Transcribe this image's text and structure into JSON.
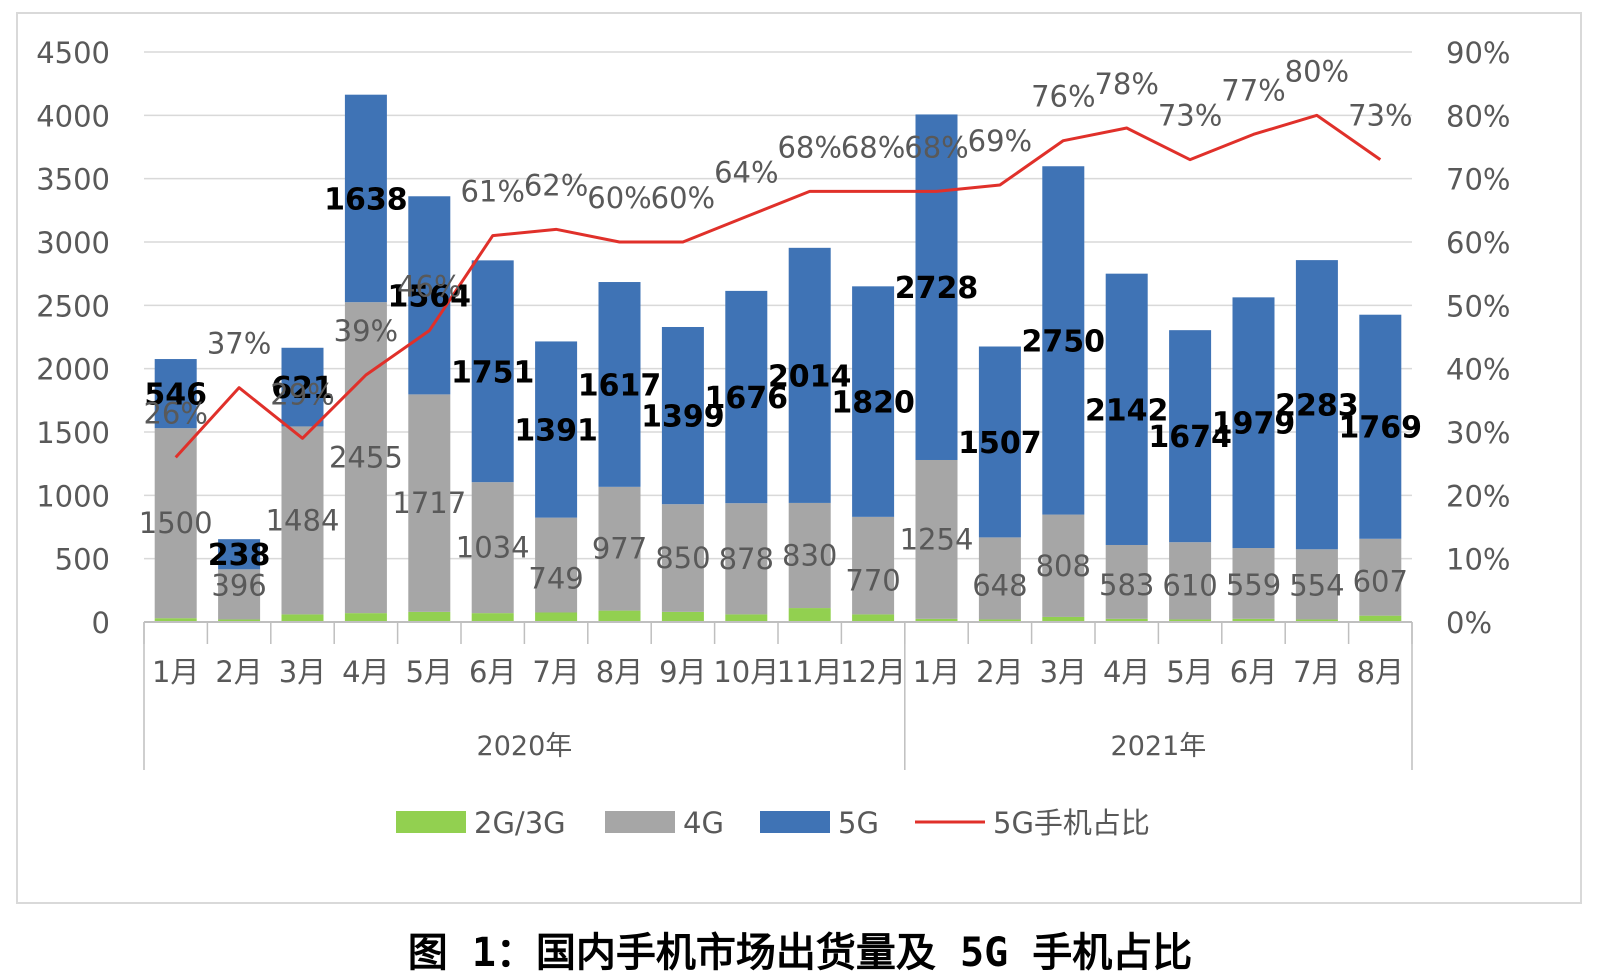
{
  "caption": "图 1：国内手机市场出货量及 5G 手机占比",
  "chart_data": {
    "type": "bar",
    "stacked": true,
    "categories": [
      "1月",
      "2月",
      "3月",
      "4月",
      "5月",
      "6月",
      "7月",
      "8月",
      "9月",
      "10月",
      "11月",
      "12月",
      "1月",
      "2月",
      "3月",
      "4月",
      "5月",
      "6月",
      "7月",
      "8月"
    ],
    "groups": [
      {
        "label": "2020年",
        "count": 12
      },
      {
        "label": "2021年",
        "count": 8
      }
    ],
    "series": [
      {
        "name": "2G/3G",
        "color": "#92d050",
        "values": [
          30,
          20,
          60,
          70,
          80,
          70,
          75,
          90,
          80,
          60,
          110,
          60,
          25,
          20,
          40,
          25,
          20,
          25,
          20,
          50
        ]
      },
      {
        "name": "4G",
        "color": "#a6a6a6",
        "values": [
          1500,
          396,
          1484,
          2455,
          1717,
          1034,
          749,
          977,
          850,
          878,
          830,
          770,
          1254,
          648,
          808,
          583,
          610,
          559,
          554,
          607
        ]
      },
      {
        "name": "5G",
        "color": "#3f73b5",
        "values": [
          546,
          238,
          621,
          1638,
          1564,
          1751,
          1391,
          1617,
          1399,
          1676,
          2014,
          1820,
          2728,
          1507,
          2750,
          2142,
          1674,
          1979,
          2283,
          1769
        ]
      }
    ],
    "line": {
      "name": "5G手机占比",
      "color": "#e0302a",
      "values": [
        26,
        37,
        29,
        39,
        46,
        61,
        62,
        60,
        60,
        64,
        68,
        68,
        68,
        69,
        76,
        78,
        73,
        77,
        80,
        73
      ]
    },
    "y_left": {
      "min": 0,
      "max": 4500,
      "ticks": [
        "0",
        "500",
        "1000",
        "1500",
        "2000",
        "2500",
        "3000",
        "3500",
        "4000",
        "4500"
      ]
    },
    "y_right": {
      "min": 0,
      "max": 90,
      "ticks": [
        "0%",
        "10%",
        "20%",
        "30%",
        "40%",
        "50%",
        "60%",
        "70%",
        "80%",
        "90%"
      ]
    },
    "grid": true,
    "legend_position": "bottom"
  }
}
